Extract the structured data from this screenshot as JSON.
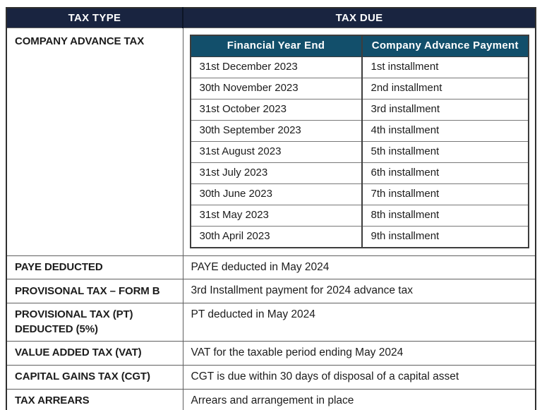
{
  "colors": {
    "main_header_bg": "#192440",
    "nested_header_bg": "#124f6b",
    "header_text": "#ffffff",
    "body_text": "#1c1c1c"
  },
  "header": {
    "tax_type": "TAX TYPE",
    "tax_due": "TAX DUE"
  },
  "company_advance": {
    "label": "COMPANY ADVANCE TAX",
    "schedule": {
      "col_financial_year_end": "Financial Year End",
      "col_company_advance_payment": "Company Advance Payment",
      "rows": [
        {
          "financial_year_end": "31st December 2023",
          "payment": "1st installment"
        },
        {
          "financial_year_end": "30th November 2023",
          "payment": "2nd installment"
        },
        {
          "financial_year_end": "31st October 2023",
          "payment": "3rd installment"
        },
        {
          "financial_year_end": "30th September 2023",
          "payment": "4th installment"
        },
        {
          "financial_year_end": "31st August 2023",
          "payment": "5th installment"
        },
        {
          "financial_year_end": "31st July 2023",
          "payment": "6th installment"
        },
        {
          "financial_year_end": "30th June 2023",
          "payment": "7th installment"
        },
        {
          "financial_year_end": "31st May 2023",
          "payment": "8th installment"
        },
        {
          "financial_year_end": "30th April 2023",
          "payment": "9th installment"
        }
      ]
    }
  },
  "rows": [
    {
      "tax_type": "PAYE DEDUCTED",
      "tax_due": "PAYE deducted in May 2024"
    },
    {
      "tax_type": "PROVISONAL TAX – FORM B",
      "tax_due": "3rd Installment payment for 2024 advance tax"
    },
    {
      "tax_type": "PROVISIONAL TAX (PT) DEDUCTED (5%)",
      "tax_due": "PT deducted in May 2024"
    },
    {
      "tax_type": "VALUE ADDED TAX (VAT)",
      "tax_due": "VAT for the taxable period ending May 2024"
    },
    {
      "tax_type": "CAPITAL GAINS TAX (CGT)",
      "tax_due": "CGT is due within 30 days of disposal of a capital asset"
    },
    {
      "tax_type": "TAX ARREARS",
      "tax_due": "Arrears and arrangement in place"
    }
  ]
}
